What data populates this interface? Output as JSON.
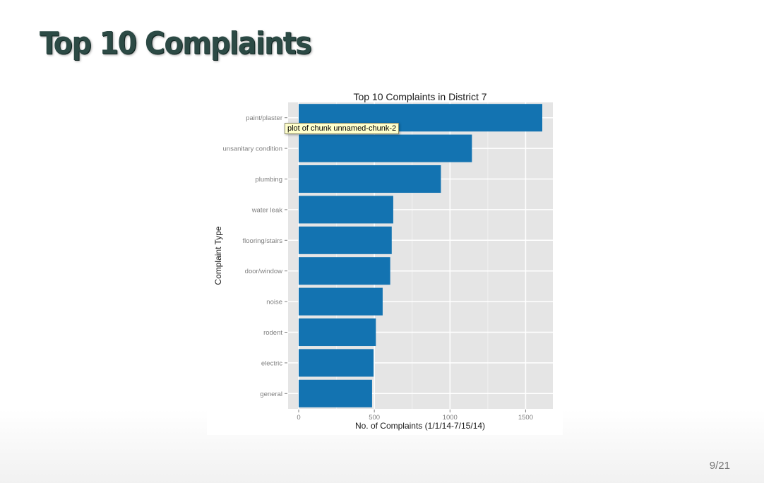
{
  "slide": {
    "title": "Top 10 Complaints",
    "page_number": "9/21",
    "tooltip": "plot of chunk unnamed-chunk-2"
  },
  "chart_data": {
    "type": "bar",
    "orientation": "horizontal",
    "title": "Top 10 Complaints in District 7",
    "xlabel": "No. of Complaints (1/1/14-7/15/14)",
    "ylabel": "Complaint Type",
    "categories": [
      "paint/plaster",
      "unsanitary condition",
      "plumbing",
      "water leak",
      "flooring/stairs",
      "door/window",
      "noise",
      "rodent",
      "electric",
      "general"
    ],
    "values": [
      1610,
      1145,
      940,
      625,
      615,
      605,
      555,
      510,
      495,
      485
    ],
    "xlim": [
      -70,
      1680
    ],
    "xticks": [
      0,
      500,
      1000,
      1500
    ],
    "grid": true,
    "colors": {
      "bar": "#1373b1",
      "panel": "#e5e5e5",
      "grid_major": "#ffffff",
      "grid_minor": "#f2f2f2",
      "axis_text": "#7f7f7f",
      "title_text": "#1a1a1a"
    }
  }
}
